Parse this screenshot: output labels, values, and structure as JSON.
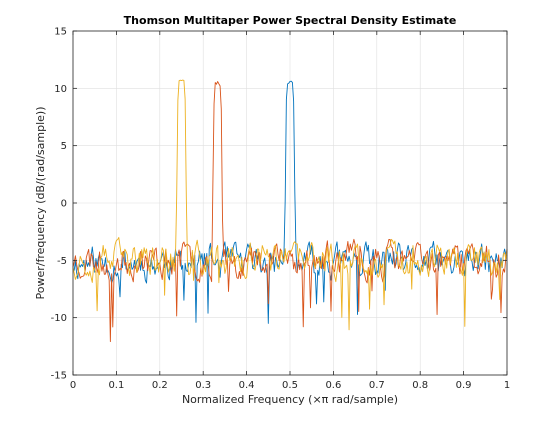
{
  "chart_data": {
    "type": "line",
    "title": "Thomson Multitaper Power Spectral Density Estimate",
    "xlabel": "Normalized Frequency  (×π rad/sample)",
    "ylabel": "Power/frequency (dB/(rad/sample))",
    "xlim": [
      0,
      1
    ],
    "ylim": [
      -15,
      15
    ],
    "xticks": [
      0,
      0.1,
      0.2,
      0.3,
      0.4,
      0.5,
      0.6,
      0.7,
      0.8,
      0.9,
      1
    ],
    "xtick_labels": [
      "0",
      "0.1",
      "0.2",
      "0.3",
      "0.4",
      "0.5",
      "0.6",
      "0.7",
      "0.8",
      "0.9",
      "1"
    ],
    "yticks": [
      -15,
      -10,
      -5,
      0,
      5,
      10,
      15
    ],
    "ytick_labels": [
      "-15",
      "-10",
      "-5",
      "0",
      "5",
      "10",
      "15"
    ],
    "grid": true,
    "legend": "none",
    "series": [
      {
        "color": "#0072BD",
        "peak_x": 0.5,
        "peak_y": 10.6,
        "peak_width": 0.012,
        "noise_floor": -5.2,
        "noise_amp": 1.6,
        "seed": 11
      },
      {
        "color": "#D95319",
        "peak_x": 0.333,
        "peak_y": 10.5,
        "peak_width": 0.012,
        "noise_floor": -5.0,
        "noise_amp": 1.6,
        "seed": 23
      },
      {
        "color": "#EDB120",
        "peak_x": 0.25,
        "peak_y": 10.8,
        "peak_width": 0.012,
        "noise_floor": -5.0,
        "noise_amp": 1.6,
        "seed": 37
      }
    ]
  }
}
